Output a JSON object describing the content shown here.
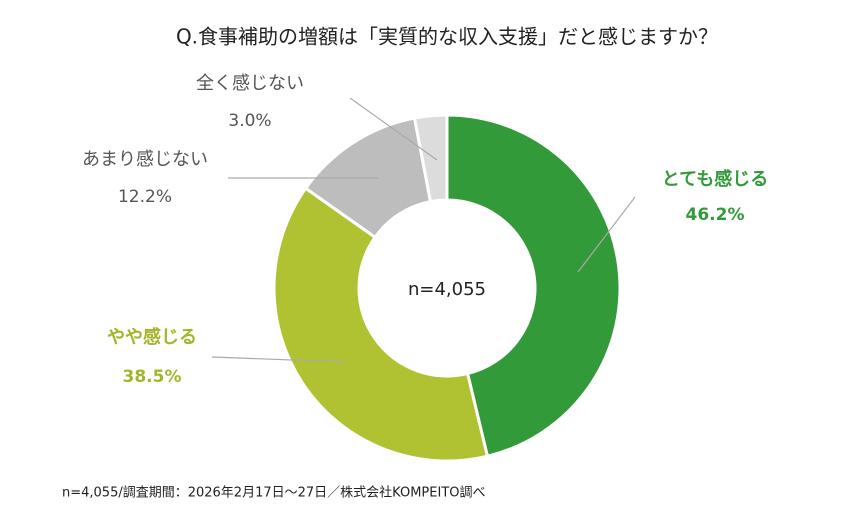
{
  "chart_data": {
    "type": "donut",
    "title": "Q.食事補助の増額は「実質的な収入支援」だと感じますか？",
    "center_label": "n=4,055",
    "categories": [
      "とても感じる",
      "やや感じる",
      "あまり感じない",
      "全く感じない"
    ],
    "values": [
      46.2,
      38.5,
      12.2,
      3.0
    ],
    "value_labels": [
      "46.2%",
      "38.5%",
      "12.2%",
      "3.0%"
    ],
    "colors": [
      "#339a3a",
      "#b0c232",
      "#bdbdbd",
      "#dcdcdc"
    ],
    "label_colors": [
      "#339a3a",
      "#a4b52c",
      "#555555",
      "#555555"
    ],
    "note": "n=4,055/調査期間：2026年2月17日〜27日／株式会社KOMPEITO調べ"
  }
}
